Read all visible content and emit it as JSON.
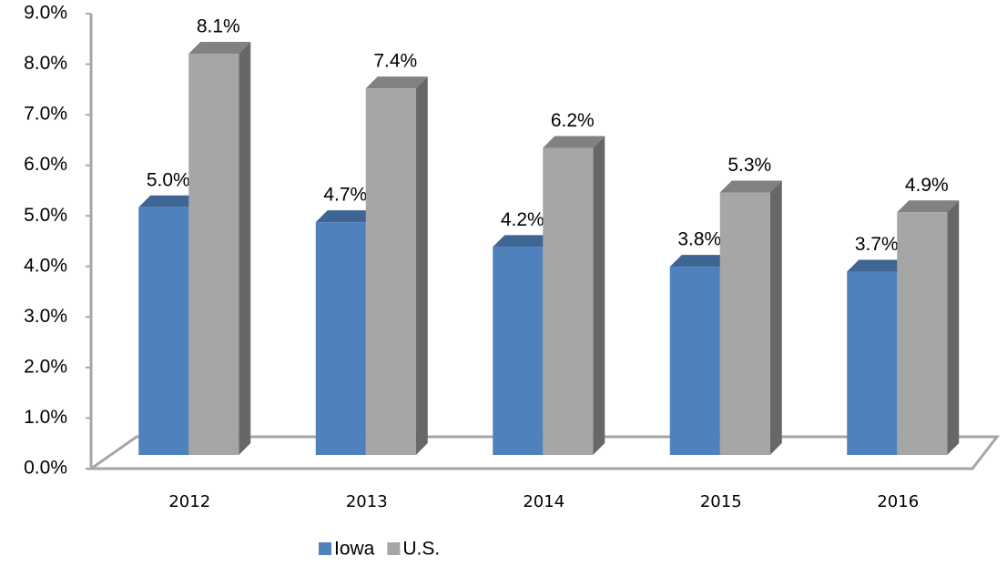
{
  "chart_data": {
    "type": "bar3d",
    "categories": [
      "2012",
      "2013",
      "2014",
      "2015",
      "2016"
    ],
    "series": [
      {
        "name": "Iowa",
        "color": "#4f81bd",
        "values": [
          5.0,
          4.7,
          4.2,
          3.8,
          3.7
        ],
        "value_labels": [
          "5.0%",
          "4.7%",
          "4.2%",
          "3.8%",
          "3.7%"
        ]
      },
      {
        "name": "U.S.",
        "color": "#a6a6a6",
        "values": [
          8.1,
          7.4,
          6.2,
          5.3,
          4.9
        ],
        "value_labels": [
          "8.1%",
          "7.4%",
          "6.2%",
          "5.3%",
          "4.9%"
        ]
      }
    ],
    "ylim": [
      0,
      9
    ],
    "yticks": [
      {
        "value": 0,
        "label": "0.0%"
      },
      {
        "value": 1,
        "label": "1.0%"
      },
      {
        "value": 2,
        "label": "2.0%"
      },
      {
        "value": 3,
        "label": "3.0%"
      },
      {
        "value": 4,
        "label": "4.0%"
      },
      {
        "value": 5,
        "label": "5.0%"
      },
      {
        "value": 6,
        "label": "6.0%"
      },
      {
        "value": 7,
        "label": "7.0%"
      },
      {
        "value": 8,
        "label": "8.0%"
      },
      {
        "value": 9,
        "label": "9.0%"
      }
    ],
    "grid": false,
    "legend": "bottom"
  }
}
